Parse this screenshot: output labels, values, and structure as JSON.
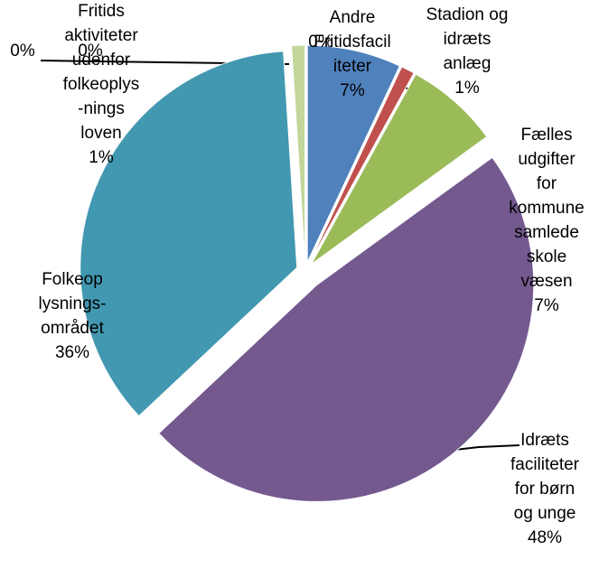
{
  "chart_data": {
    "type": "pie",
    "categories": [
      "Andre\nFritidsfacil\niteter",
      "Stadion og\nidræts\nanlæg",
      "Fælles\nudgifter\nfor\nkommune\nsamlede\nskole\nvæsen",
      "Idræts\nfaciliteter\nfor børn\nog unge",
      "Folkeop\nlysnings-\nområdet",
      "Fritids\naktiviteter\nudenfor\nfolkeoplys\n-nings\nloven",
      null,
      null,
      null
    ],
    "values": [
      7,
      1,
      7,
      48,
      36,
      1,
      0,
      0,
      0
    ],
    "value_labels": [
      "7%",
      "1%",
      "7%",
      "48%",
      "36%",
      "1%",
      "0%",
      "0%",
      "0%"
    ],
    "colors": [
      "#4f81bd",
      "#c0504d",
      "#9bbb59",
      "#74598f",
      "#4298b0",
      "#c3d69b",
      "#f79646",
      "#4f81bd",
      "#c0504d"
    ]
  }
}
